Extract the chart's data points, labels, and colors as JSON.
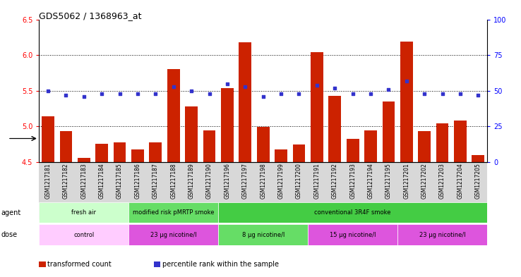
{
  "title": "GDS5062 / 1368963_at",
  "samples": [
    "GSM1217181",
    "GSM1217182",
    "GSM1217183",
    "GSM1217184",
    "GSM1217185",
    "GSM1217186",
    "GSM1217187",
    "GSM1217188",
    "GSM1217189",
    "GSM1217190",
    "GSM1217196",
    "GSM1217197",
    "GSM1217198",
    "GSM1217199",
    "GSM1217200",
    "GSM1217191",
    "GSM1217192",
    "GSM1217193",
    "GSM1217194",
    "GSM1217195",
    "GSM1217201",
    "GSM1217202",
    "GSM1217203",
    "GSM1217204",
    "GSM1217205"
  ],
  "bar_values": [
    5.14,
    4.93,
    4.56,
    4.76,
    4.78,
    4.68,
    4.78,
    5.8,
    5.28,
    4.94,
    5.54,
    6.18,
    4.99,
    4.68,
    4.75,
    6.04,
    5.43,
    4.83,
    4.94,
    5.35,
    6.19,
    4.93,
    5.04,
    5.08,
    4.6
  ],
  "percentile_values": [
    50,
    47,
    46,
    48,
    48,
    48,
    48,
    53,
    50,
    48,
    55,
    53,
    46,
    48,
    48,
    54,
    52,
    48,
    48,
    51,
    57,
    48,
    48,
    48,
    47
  ],
  "ylim_left": [
    4.5,
    6.5
  ],
  "ylim_right": [
    0,
    100
  ],
  "yticks_left": [
    4.5,
    5.0,
    5.5,
    6.0,
    6.5
  ],
  "yticks_right": [
    0,
    25,
    50,
    75,
    100
  ],
  "bar_color": "#cc2200",
  "dot_color": "#3333cc",
  "agent_groups": [
    {
      "label": "fresh air",
      "start": 0,
      "end": 4,
      "color": "#ccffcc"
    },
    {
      "label": "modified risk pMRTP smoke",
      "start": 5,
      "end": 9,
      "color": "#66dd66"
    },
    {
      "label": "conventional 3R4F smoke",
      "start": 10,
      "end": 24,
      "color": "#44cc44"
    }
  ],
  "dose_groups": [
    {
      "label": "control",
      "start": 0,
      "end": 4,
      "color": "#ffccff"
    },
    {
      "label": "23 μg nicotine/l",
      "start": 5,
      "end": 9,
      "color": "#dd55dd"
    },
    {
      "label": "8 μg nicotine/l",
      "start": 10,
      "end": 14,
      "color": "#66dd66"
    },
    {
      "label": "15 μg nicotine/l",
      "start": 15,
      "end": 19,
      "color": "#dd55dd"
    },
    {
      "label": "23 μg nicotine/l",
      "start": 20,
      "end": 24,
      "color": "#dd55dd"
    }
  ],
  "hlines": [
    5.0,
    5.5,
    6.0
  ],
  "legend_items": [
    {
      "label": "transformed count",
      "color": "#cc2200"
    },
    {
      "label": "percentile rank within the sample",
      "color": "#3333cc"
    }
  ],
  "xtick_bg": "#d8d8d8"
}
